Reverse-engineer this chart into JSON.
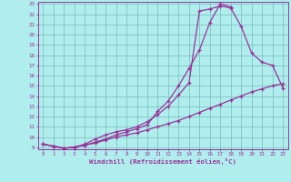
{
  "bg_color": "#b0eeee",
  "grid_color": "#80c4c4",
  "line_color": "#993399",
  "marker": "+",
  "marker_size": 3.5,
  "line_width": 0.9,
  "xlim": [
    -0.5,
    23.5
  ],
  "ylim": [
    8.8,
    23.2
  ],
  "xticks": [
    0,
    1,
    2,
    3,
    4,
    5,
    6,
    7,
    8,
    9,
    10,
    11,
    12,
    13,
    14,
    15,
    16,
    17,
    18,
    19,
    20,
    21,
    22,
    23
  ],
  "yticks": [
    9,
    10,
    11,
    12,
    13,
    14,
    15,
    16,
    17,
    18,
    19,
    20,
    21,
    22,
    23
  ],
  "xlabel": "Windchill (Refroidissement éolien,°C)",
  "xlabel_color": "#993399",
  "tick_color": "#993399",
  "line1_x": [
    0,
    1,
    2,
    3,
    4,
    5,
    6,
    7,
    8,
    9,
    10,
    11,
    12,
    13,
    14,
    15,
    16,
    17,
    18
  ],
  "line1_y": [
    9.3,
    9.1,
    8.9,
    9.0,
    9.2,
    9.5,
    9.8,
    10.2,
    10.5,
    10.8,
    11.2,
    12.5,
    13.5,
    15.0,
    16.7,
    18.5,
    21.2,
    23.0,
    22.7
  ],
  "line2_x": [
    0,
    1,
    2,
    3,
    4,
    5,
    6,
    7,
    8,
    9,
    10,
    11,
    12,
    13,
    14,
    15,
    16,
    17,
    18,
    19,
    20,
    21,
    22,
    23
  ],
  "line2_y": [
    9.3,
    9.1,
    8.9,
    9.0,
    9.2,
    9.4,
    9.7,
    10.0,
    10.2,
    10.4,
    10.7,
    11.0,
    11.3,
    11.6,
    12.0,
    12.4,
    12.8,
    13.2,
    13.6,
    14.0,
    14.4,
    14.7,
    15.0,
    15.2
  ],
  "line3_x": [
    0,
    1,
    2,
    3,
    4,
    5,
    6,
    7,
    8,
    9,
    10,
    11,
    12,
    13,
    14,
    15,
    16,
    17,
    18,
    19,
    20,
    21,
    22,
    23
  ],
  "line3_y": [
    9.3,
    9.1,
    8.9,
    9.0,
    9.3,
    9.8,
    10.2,
    10.5,
    10.7,
    11.0,
    11.5,
    12.2,
    13.0,
    14.1,
    15.3,
    22.3,
    22.5,
    22.8,
    22.6,
    20.8,
    18.2,
    17.3,
    17.0,
    14.8
  ]
}
